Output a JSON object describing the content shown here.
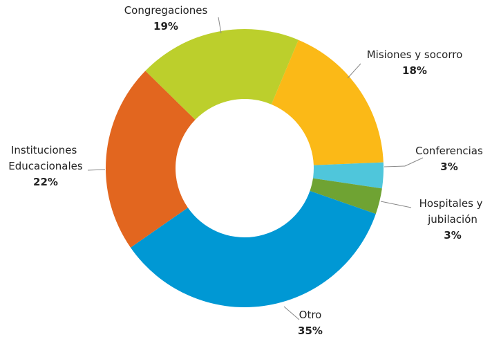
{
  "chart_data": {
    "type": "donut",
    "categories": [
      "Misiones y socorro",
      "Conferencias",
      "Hospitales y jubilación",
      "Otro",
      "Instituciones Educacionales",
      "Congregaciones"
    ],
    "values": [
      18,
      3,
      3,
      35,
      22,
      19
    ],
    "value_labels": [
      "18%",
      "3%",
      "3%",
      "35%",
      "22%",
      "19%"
    ],
    "colors": [
      "#fbb917",
      "#4fc6db",
      "#6fa333",
      "#0098d4",
      "#e2661f",
      "#bccf2c"
    ]
  }
}
